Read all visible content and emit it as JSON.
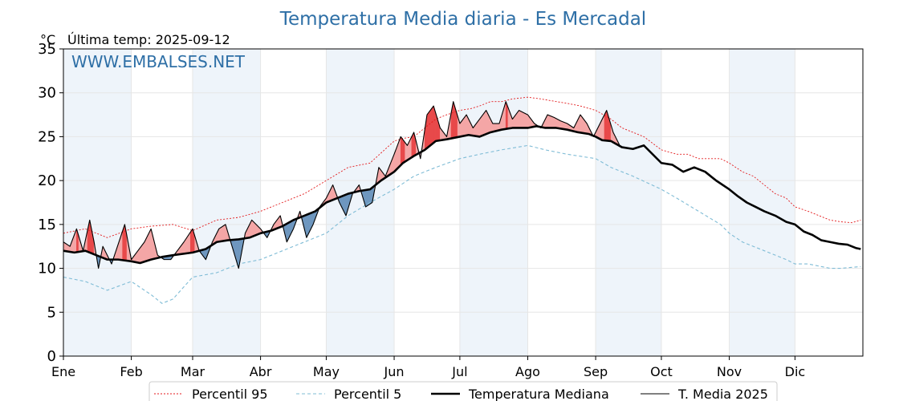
{
  "chart_data": {
    "type": "line",
    "title": "Temperatura Media diaria - Es Mercadal",
    "unit_label": "°C",
    "last_temp_label": "Última temp: 2025-09-12",
    "watermark": "WWW.EMBALSES.NET",
    "ylim": [
      0,
      35
    ],
    "y_ticks": [
      0,
      5,
      10,
      15,
      20,
      25,
      30,
      35
    ],
    "xlim": [
      0,
      365
    ],
    "x_ticks": [
      {
        "day": 0,
        "label": "Ene"
      },
      {
        "day": 31,
        "label": "Feb"
      },
      {
        "day": 59,
        "label": "Mar"
      },
      {
        "day": 90,
        "label": "Abr"
      },
      {
        "day": 120,
        "label": "May"
      },
      {
        "day": 151,
        "label": "Jun"
      },
      {
        "day": 181,
        "label": "Jul"
      },
      {
        "day": 212,
        "label": "Ago"
      },
      {
        "day": 243,
        "label": "Sep"
      },
      {
        "day": 273,
        "label": "Oct"
      },
      {
        "day": 304,
        "label": "Nov"
      },
      {
        "day": 334,
        "label": "Dic"
      }
    ],
    "grid": true,
    "legend_position": "bottom-center",
    "colors": {
      "p95": "#e31a1c",
      "p5": "#7fbcd6",
      "median": "#000000",
      "current": "#000000",
      "above_fill": "#f4a6a6",
      "above_extreme_fill": "#e8494a",
      "below_fill": "#6e97bf",
      "month_band": "#eef4fa"
    },
    "series": [
      {
        "name": "Percentil 95",
        "style": "dotted",
        "x": [
          0,
          10,
          20,
          31,
          40,
          50,
          59,
          70,
          80,
          90,
          100,
          110,
          120,
          130,
          140,
          151,
          155,
          160,
          165,
          170,
          175,
          181,
          186,
          190,
          195,
          200,
          205,
          212,
          218,
          225,
          230,
          236,
          243,
          250,
          255,
          260,
          265,
          273,
          280,
          285,
          290,
          295,
          300,
          304,
          310,
          315,
          320,
          325,
          330,
          334,
          340,
          345,
          350,
          355,
          360,
          364
        ],
        "values": [
          14,
          14.5,
          13.5,
          14.5,
          14.8,
          15,
          14.3,
          15.5,
          15.8,
          16.5,
          17.5,
          18.5,
          20,
          21.5,
          22,
          24.5,
          24.8,
          25,
          26,
          27,
          27.5,
          28,
          28.2,
          28.5,
          29,
          29,
          29.3,
          29.5,
          29.3,
          29,
          28.8,
          28.5,
          28,
          27,
          26,
          25.5,
          25,
          23.5,
          23,
          23,
          22.5,
          22.5,
          22.5,
          22,
          21,
          20.5,
          19.5,
          18.5,
          18,
          17,
          16.5,
          16,
          15.5,
          15.3,
          15.2,
          15.5
        ]
      },
      {
        "name": "Percentil 5",
        "style": "dashed",
        "x": [
          0,
          10,
          20,
          31,
          40,
          45,
          50,
          59,
          70,
          80,
          90,
          100,
          110,
          120,
          130,
          140,
          151,
          160,
          170,
          181,
          190,
          200,
          212,
          220,
          230,
          243,
          250,
          260,
          273,
          280,
          290,
          300,
          304,
          310,
          320,
          325,
          330,
          334,
          340,
          350,
          355,
          364
        ],
        "values": [
          9,
          8.5,
          7.5,
          8.5,
          7,
          6,
          6.5,
          9,
          9.5,
          10.5,
          11,
          12,
          13,
          14,
          16,
          17.5,
          19,
          20.5,
          21.5,
          22.5,
          23,
          23.5,
          24,
          23.5,
          23,
          22.5,
          21.5,
          20.5,
          19,
          18,
          16.5,
          15,
          14,
          13,
          12,
          11.5,
          11,
          10.5,
          10.5,
          10,
          10,
          10.2
        ]
      },
      {
        "name": "Temperatura Mediana",
        "style": "thick",
        "x": [
          0,
          5,
          10,
          15,
          20,
          25,
          31,
          35,
          40,
          45,
          50,
          59,
          65,
          70,
          75,
          80,
          85,
          90,
          95,
          100,
          105,
          110,
          115,
          120,
          125,
          130,
          135,
          140,
          145,
          151,
          155,
          160,
          165,
          170,
          175,
          181,
          185,
          190,
          195,
          200,
          205,
          212,
          216,
          220,
          225,
          230,
          235,
          240,
          243,
          246,
          250,
          255,
          260,
          265,
          273,
          278,
          283,
          288,
          293,
          298,
          304,
          308,
          312,
          316,
          320,
          325,
          330,
          334,
          338,
          342,
          346,
          350,
          354,
          358,
          362,
          364
        ],
        "values": [
          12,
          11.8,
          12,
          11.5,
          11,
          11,
          10.8,
          10.6,
          11,
          11.3,
          11.5,
          11.8,
          12.2,
          13,
          13.2,
          13.3,
          13.5,
          14,
          14.3,
          14.8,
          15.5,
          16,
          16.5,
          17.5,
          18,
          18.5,
          18.8,
          19,
          20,
          21,
          22,
          22.8,
          23.5,
          24.5,
          24.7,
          25,
          25.2,
          25,
          25.5,
          25.8,
          26,
          26,
          26.2,
          26,
          26,
          25.8,
          25.5,
          25.3,
          25,
          24.6,
          24.5,
          23.8,
          23.6,
          24,
          22,
          21.8,
          21,
          21.5,
          21,
          20,
          19,
          18.2,
          17.5,
          17,
          16.5,
          16,
          15.3,
          15,
          14.2,
          13.8,
          13.2,
          13,
          12.8,
          12.7,
          12.3,
          12.2
        ]
      },
      {
        "name": "T. Media 2025",
        "style": "thin",
        "x": [
          0,
          3,
          6,
          9,
          12,
          14,
          16,
          18,
          20,
          22,
          24,
          26,
          28,
          31,
          34,
          37,
          40,
          43,
          46,
          49,
          52,
          55,
          59,
          62,
          65,
          68,
          71,
          74,
          77,
          80,
          83,
          86,
          90,
          93,
          96,
          99,
          102,
          105,
          108,
          111,
          114,
          117,
          120,
          123,
          126,
          129,
          132,
          135,
          138,
          141,
          144,
          147,
          151,
          154,
          157,
          160,
          163,
          166,
          169,
          172,
          175,
          178,
          181,
          184,
          187,
          190,
          193,
          196,
          199,
          202,
          205,
          208,
          212,
          215,
          218,
          221,
          224,
          227,
          230,
          233,
          236,
          239,
          242,
          245,
          248,
          251,
          254
        ],
        "values": [
          13,
          12.5,
          14.5,
          12,
          15.5,
          13,
          10,
          12.5,
          11.5,
          10.5,
          12,
          13.5,
          15,
          11,
          12,
          13,
          14.5,
          11.5,
          11,
          11,
          12,
          13,
          14.5,
          12,
          11,
          13,
          14.5,
          15,
          12.5,
          10,
          14,
          15.5,
          14.5,
          13.5,
          15,
          16,
          13,
          14.5,
          16.5,
          13.5,
          15,
          17,
          18,
          19.5,
          17.5,
          16,
          18.5,
          19.5,
          17,
          17.5,
          21.5,
          20.5,
          23,
          25,
          24,
          25.5,
          22.5,
          27.5,
          28.5,
          26,
          25,
          29,
          26.5,
          27.5,
          26,
          27,
          28,
          26.5,
          26.5,
          29,
          27,
          28,
          27.5,
          26.5,
          26,
          27.5,
          27.2,
          26.8,
          26.5,
          26,
          27.5,
          26.5,
          25,
          26.5,
          28,
          25.5,
          24
        ]
      }
    ]
  }
}
